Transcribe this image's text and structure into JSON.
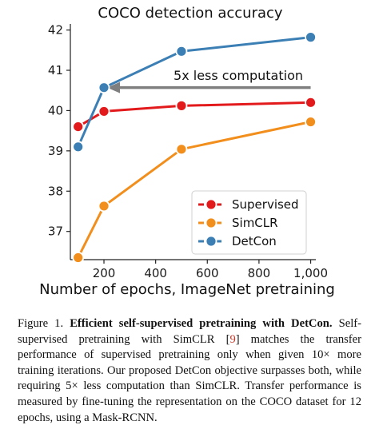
{
  "chart_data": {
    "type": "line",
    "title": "COCO detection accuracy",
    "xlabel": "Number of epochs, ImageNet pretraining",
    "ylabel": "",
    "xlim": [
      70,
      1020
    ],
    "ylim": [
      36.3,
      42.15
    ],
    "xticks": [
      200,
      400,
      600,
      800,
      1000
    ],
    "xtick_labels": [
      "200",
      "400",
      "600",
      "800",
      "1,000"
    ],
    "yticks": [
      37,
      38,
      39,
      40,
      41,
      42
    ],
    "ytick_labels": [
      "37",
      "38",
      "39",
      "40",
      "41",
      "42"
    ],
    "grid": false,
    "legend_position": "bottom-right",
    "series": [
      {
        "name": "Supervised",
        "color": "#e31a1c",
        "x": [
          100,
          200,
          500,
          1000
        ],
        "y": [
          39.6,
          39.98,
          40.12,
          40.2
        ]
      },
      {
        "name": "SimCLR",
        "color": "#f28e1c",
        "x": [
          100,
          200,
          500,
          1000
        ],
        "y": [
          36.35,
          37.63,
          39.04,
          39.72
        ]
      },
      {
        "name": "DetCon",
        "color": "#3b7fb5",
        "x": [
          100,
          200,
          500,
          1000
        ],
        "y": [
          39.1,
          40.57,
          41.47,
          41.82
        ]
      }
    ],
    "annotation": {
      "text": "5x less computation",
      "arrow_from": [
        1000,
        40.57
      ],
      "arrow_to": [
        200,
        40.57
      ],
      "arrow_color": "#7f7f7f"
    }
  },
  "caption": {
    "figure_label": "Figure 1.",
    "title": "Efficient self-supervised pretraining with DetCon.",
    "text_before_ref": "Self-supervised pretraining with SimCLR [",
    "ref": "9",
    "text_after_ref": "] matches the transfer performance of supervised pretraining only when given 10× more training iterations. Our proposed DetCon objective surpasses both, while requiring 5× less computation than SimCLR. Transfer performance is measured by fine-tuning the representation on the COCO dataset for 12 epochs, using a Mask-RCNN."
  }
}
